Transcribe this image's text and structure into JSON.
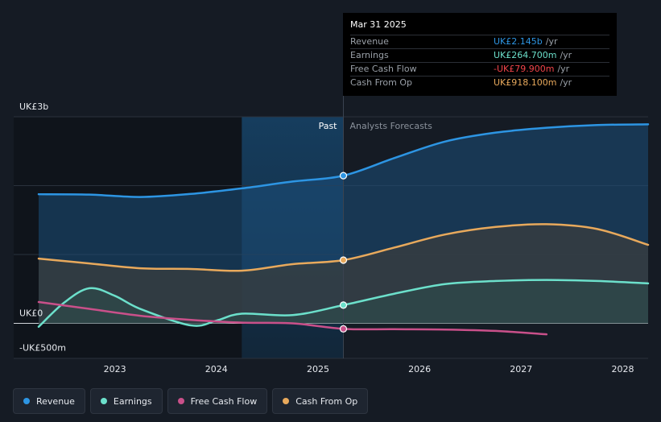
{
  "tooltip": {
    "date": "Mar 31 2025",
    "rows": [
      {
        "label": "Revenue",
        "value": "UK£2.145b",
        "unit": "/yr",
        "color": "#2d95e3"
      },
      {
        "label": "Earnings",
        "value": "UK£264.700m",
        "unit": "/yr",
        "color": "#6ce0cb"
      },
      {
        "label": "Free Cash Flow",
        "value": "-UK£79.900m",
        "unit": "/yr",
        "color": "#f2444a"
      },
      {
        "label": "Cash From Op",
        "value": "UK£918.100m",
        "unit": "/yr",
        "color": "#e8a95c"
      }
    ]
  },
  "legend": [
    {
      "label": "Revenue",
      "color": "#2d95e3"
    },
    {
      "label": "Earnings",
      "color": "#6ce0cb"
    },
    {
      "label": "Free Cash Flow",
      "color": "#c9508a"
    },
    {
      "label": "Cash From Op",
      "color": "#e8a95c"
    }
  ],
  "chart_data": {
    "type": "line",
    "y_unit": "UK£m",
    "ylim": [
      -500,
      3000
    ],
    "y_tick_labels": [
      {
        "value": 3000,
        "label": "UK£3b"
      },
      {
        "value": 0,
        "label": "UK£0"
      },
      {
        "value": -500,
        "label": "-UK£500m"
      }
    ],
    "xlim": [
      2022.25,
      2028.25
    ],
    "x_ticks": [
      2023,
      2024,
      2025,
      2026,
      2027,
      2028
    ],
    "x_tick_labels": [
      "2023",
      "2024",
      "2025",
      "2026",
      "2027",
      "2028"
    ],
    "divider_x": 2025.25,
    "past_label": "Past",
    "forecast_label": "Analysts Forecasts",
    "highlight_range": [
      2024.25,
      2025.25
    ],
    "series": [
      {
        "name": "Revenue",
        "color": "#2d95e3",
        "fill": true,
        "points": [
          [
            2022.25,
            1875
          ],
          [
            2022.75,
            1870
          ],
          [
            2023.25,
            1835
          ],
          [
            2023.75,
            1880
          ],
          [
            2024.25,
            1960
          ],
          [
            2024.75,
            2060
          ],
          [
            2025.25,
            2145
          ],
          [
            2025.75,
            2400
          ],
          [
            2026.25,
            2640
          ],
          [
            2026.75,
            2770
          ],
          [
            2027.25,
            2840
          ],
          [
            2027.75,
            2880
          ],
          [
            2028.25,
            2890
          ]
        ]
      },
      {
        "name": "Cash From Op",
        "color": "#e8a95c",
        "fill": true,
        "points": [
          [
            2022.25,
            940
          ],
          [
            2022.75,
            870
          ],
          [
            2023.25,
            800
          ],
          [
            2023.75,
            790
          ],
          [
            2024.25,
            765
          ],
          [
            2024.75,
            860
          ],
          [
            2025.25,
            918
          ],
          [
            2025.75,
            1100
          ],
          [
            2026.25,
            1290
          ],
          [
            2026.75,
            1400
          ],
          [
            2027.25,
            1440
          ],
          [
            2027.75,
            1370
          ],
          [
            2028.25,
            1140
          ]
        ]
      },
      {
        "name": "Earnings",
        "color": "#6ce0cb",
        "fill": true,
        "points": [
          [
            2022.25,
            -50
          ],
          [
            2022.5,
            300
          ],
          [
            2022.75,
            510
          ],
          [
            2023.0,
            400
          ],
          [
            2023.25,
            210
          ],
          [
            2023.75,
            -30
          ],
          [
            2024.0,
            40
          ],
          [
            2024.25,
            140
          ],
          [
            2024.75,
            120
          ],
          [
            2025.25,
            264.7
          ],
          [
            2025.75,
            430
          ],
          [
            2026.25,
            570
          ],
          [
            2026.75,
            615
          ],
          [
            2027.25,
            630
          ],
          [
            2027.75,
            615
          ],
          [
            2028.25,
            580
          ]
        ]
      },
      {
        "name": "Free Cash Flow",
        "color": "#c9508a",
        "fill": false,
        "points": [
          [
            2022.25,
            310
          ],
          [
            2022.75,
            210
          ],
          [
            2023.25,
            110
          ],
          [
            2023.75,
            50
          ],
          [
            2024.25,
            10
          ],
          [
            2024.75,
            0
          ],
          [
            2025.25,
            -79.9
          ],
          [
            2025.75,
            -85
          ],
          [
            2026.25,
            -90
          ],
          [
            2026.75,
            -110
          ],
          [
            2027.25,
            -160
          ]
        ]
      }
    ],
    "markers": [
      {
        "series": "Revenue",
        "x": 2025.25,
        "y": 2145
      },
      {
        "series": "Cash From Op",
        "x": 2025.25,
        "y": 918.1
      },
      {
        "series": "Earnings",
        "x": 2025.25,
        "y": 264.7
      },
      {
        "series": "Free Cash Flow",
        "x": 2025.25,
        "y": -79.9
      }
    ]
  }
}
